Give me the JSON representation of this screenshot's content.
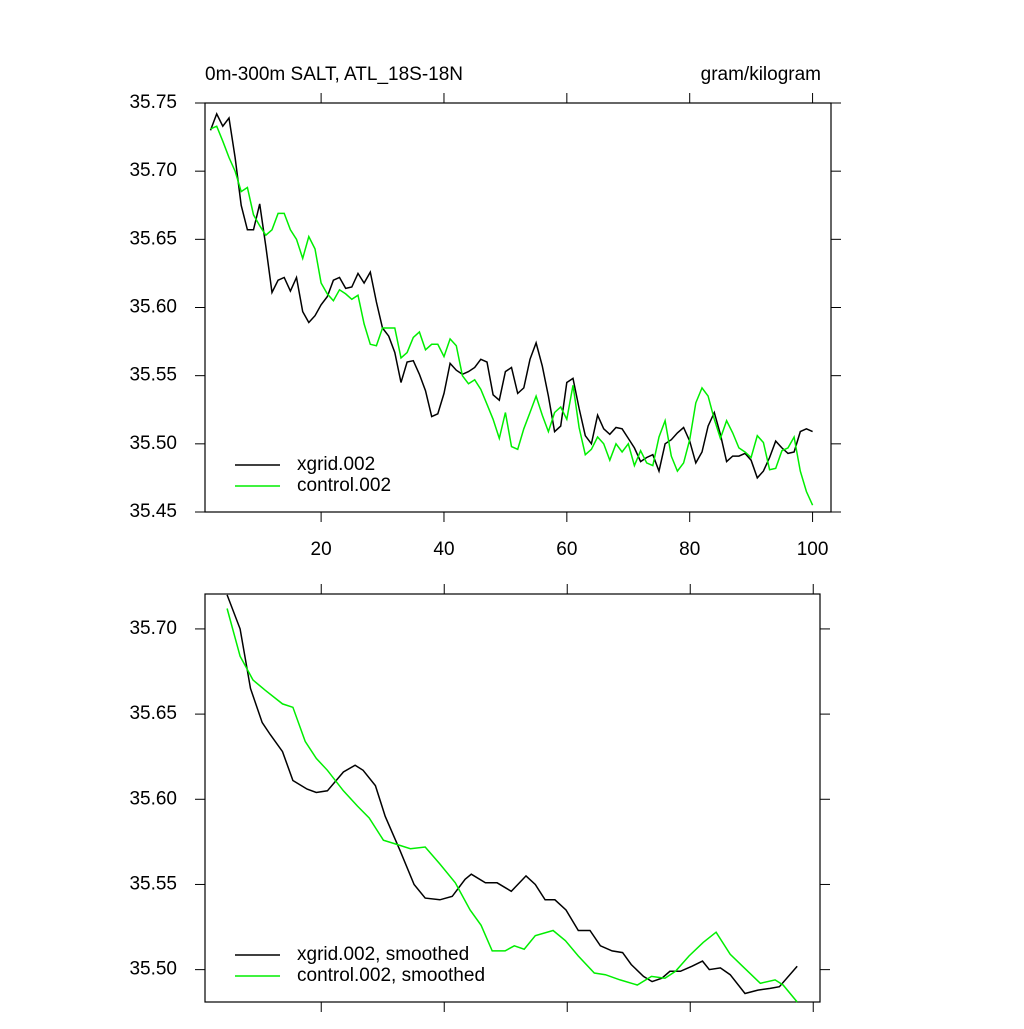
{
  "chart_data": [
    {
      "type": "line",
      "title": "0m-300m SALT, ATL_18S-18N",
      "subtitle": "gram/kilogram",
      "x": [
        2,
        3,
        4,
        5,
        6,
        7,
        8,
        9,
        10,
        11,
        12,
        13,
        14,
        15,
        16,
        17,
        18,
        19,
        20,
        21,
        22,
        23,
        24,
        25,
        26,
        27,
        28,
        29,
        30,
        31,
        32,
        33,
        34,
        35,
        36,
        37,
        38,
        39,
        40,
        41,
        42,
        43,
        44,
        45,
        46,
        47,
        48,
        49,
        50,
        51,
        52,
        53,
        54,
        55,
        56,
        57,
        58,
        59,
        60,
        61,
        62,
        63,
        64,
        65,
        66,
        67,
        68,
        69,
        70,
        71,
        72,
        73,
        74,
        75,
        76,
        77,
        78,
        79,
        80,
        81,
        82,
        83,
        84,
        85,
        86,
        87,
        88,
        89,
        90,
        91,
        92,
        93,
        94,
        95,
        96,
        97,
        98,
        99,
        100
      ],
      "series": [
        {
          "name": "xgrid.002",
          "color": "#000000",
          "values": [
            35.73,
            35.742,
            35.733,
            35.739,
            35.71,
            35.675,
            35.657,
            35.657,
            35.676,
            35.645,
            35.611,
            35.62,
            35.622,
            35.612,
            35.622,
            35.597,
            35.589,
            35.594,
            35.602,
            35.608,
            35.62,
            35.622,
            35.614,
            35.615,
            35.625,
            35.618,
            35.626,
            35.604,
            35.585,
            35.579,
            35.567,
            35.545,
            35.56,
            35.561,
            35.551,
            35.539,
            35.52,
            35.522,
            35.537,
            35.559,
            35.554,
            35.551,
            35.553,
            35.556,
            35.562,
            35.56,
            35.536,
            35.532,
            35.553,
            35.556,
            35.537,
            35.541,
            35.562,
            35.574,
            35.557,
            35.535,
            35.509,
            35.513,
            35.545,
            35.548,
            35.526,
            35.506,
            35.5,
            35.521,
            35.511,
            35.507,
            35.512,
            35.511,
            35.504,
            35.497,
            35.487,
            35.49,
            35.492,
            35.48,
            35.5,
            35.503,
            35.508,
            35.512,
            35.502,
            35.486,
            35.494,
            35.513,
            35.523,
            35.507,
            35.487,
            35.491,
            35.491,
            35.493,
            35.488,
            35.475,
            35.48,
            35.49,
            35.502,
            35.497,
            35.493,
            35.494,
            35.509,
            35.511,
            35.509
          ]
        },
        {
          "name": "control.002",
          "color": "#00ee00",
          "values": [
            35.731,
            35.733,
            35.722,
            35.71,
            35.7,
            35.685,
            35.688,
            35.668,
            35.66,
            35.653,
            35.657,
            35.669,
            35.669,
            35.657,
            35.65,
            35.636,
            35.652,
            35.643,
            35.618,
            35.61,
            35.605,
            35.613,
            35.61,
            35.606,
            35.609,
            35.588,
            35.573,
            35.572,
            35.585,
            35.585,
            35.585,
            35.563,
            35.567,
            35.578,
            35.582,
            35.569,
            35.573,
            35.573,
            35.564,
            35.577,
            35.572,
            35.55,
            35.544,
            35.547,
            35.54,
            35.529,
            35.518,
            35.504,
            35.523,
            35.498,
            35.496,
            35.511,
            35.523,
            35.535,
            35.521,
            35.509,
            35.523,
            35.527,
            35.518,
            35.543,
            35.512,
            35.492,
            35.496,
            35.505,
            35.5,
            35.488,
            35.5,
            35.494,
            35.5,
            35.484,
            35.495,
            35.486,
            35.484,
            35.505,
            35.517,
            35.491,
            35.48,
            35.486,
            35.503,
            35.53,
            35.541,
            35.535,
            35.518,
            35.504,
            35.517,
            35.508,
            35.497,
            35.494,
            35.49,
            35.506,
            35.501,
            35.481,
            35.482,
            35.495,
            35.497,
            35.505,
            35.48,
            35.465,
            35.455
          ]
        }
      ],
      "xlim": [
        1.1,
        103
      ],
      "xticks": [
        20,
        40,
        60,
        80,
        100
      ],
      "ylim": [
        35.45,
        35.75
      ],
      "yticks": [
        35.45,
        {
          "value": 35.5,
          "label": "35.50"
        },
        35.55,
        {
          "value": 35.6,
          "label": "35.60"
        },
        35.65,
        {
          "value": 35.7,
          "label": "35.70"
        },
        35.75
      ],
      "legend": "lower left"
    },
    {
      "type": "line",
      "series": [
        {
          "name": "xgrid.002, smoothed",
          "color": "#000000",
          "x": [
            4.7,
            6.8,
            8.5,
            10.4,
            11.7,
            13.7,
            15.4,
            17.7,
            19.2,
            21,
            23.6,
            25.5,
            26.8,
            28.8,
            30.4,
            32.8,
            35.1,
            36.9,
            39.3,
            41.3,
            43.4,
            44.4,
            46.7,
            48.6,
            50.9,
            53.3,
            54.8,
            56.4,
            58,
            59.8,
            61.8,
            63.7,
            65.4,
            67.3,
            69,
            70.4,
            72.4,
            73.8,
            75.4,
            76.7,
            78.4,
            80.3,
            82,
            83.1,
            84.9,
            86.5,
            88.9,
            91,
            93,
            94.5,
            97.4
          ],
          "values": [
            35.72,
            35.7,
            35.665,
            35.645,
            35.638,
            35.628,
            35.611,
            35.606,
            35.604,
            35.605,
            35.616,
            35.62,
            35.617,
            35.608,
            35.59,
            35.57,
            35.55,
            35.542,
            35.541,
            35.543,
            35.553,
            35.556,
            35.551,
            35.551,
            35.546,
            35.555,
            35.55,
            35.541,
            35.541,
            35.535,
            35.523,
            35.523,
            35.514,
            35.511,
            35.51,
            35.503,
            35.496,
            35.493,
            35.495,
            35.499,
            35.499,
            35.502,
            35.505,
            35.5,
            35.501,
            35.497,
            35.486,
            35.488,
            35.489,
            35.49,
            35.502
          ]
        },
        {
          "name": "control.002, smoothed",
          "color": "#00ee00",
          "x": [
            4.7,
            6.8,
            8.9,
            10.9,
            13.7,
            15.4,
            17.4,
            19.2,
            21,
            23.6,
            25.9,
            27.8,
            30.1,
            31.9,
            34.5,
            36.9,
            39.3,
            41.8,
            44.2,
            46,
            47.8,
            49.9,
            51.4,
            53,
            54.8,
            57.7,
            59.7,
            61.8,
            64.4,
            66.2,
            68.6,
            71.4,
            73.7,
            75.9,
            77.6,
            79.8,
            82.1,
            84.2,
            86.5,
            88.5,
            91.4,
            93.8,
            95.1,
            97.4
          ],
          "values": [
            35.712,
            35.684,
            35.67,
            35.664,
            35.656,
            35.654,
            35.634,
            35.624,
            35.617,
            35.605,
            35.596,
            35.589,
            35.576,
            35.574,
            35.571,
            35.572,
            35.562,
            35.551,
            35.535,
            35.526,
            35.511,
            35.511,
            35.514,
            35.512,
            35.52,
            35.523,
            35.517,
            35.508,
            35.498,
            35.497,
            35.494,
            35.491,
            35.496,
            35.495,
            35.499,
            35.508,
            35.516,
            35.522,
            35.509,
            35.502,
            35.492,
            35.494,
            35.491,
            35.481
          ]
        }
      ],
      "xlim": [
        1.1,
        101.1
      ],
      "xticks": [
        20,
        40,
        60,
        80,
        100
      ],
      "ylim": [
        35.481,
        35.7205
      ],
      "yticks": [
        {
          "value": 35.5,
          "label": "35.50"
        },
        35.55,
        {
          "value": 35.6,
          "label": "35.60"
        },
        35.65,
        {
          "value": 35.7,
          "label": "35.70"
        }
      ],
      "legend": "lower left"
    }
  ]
}
